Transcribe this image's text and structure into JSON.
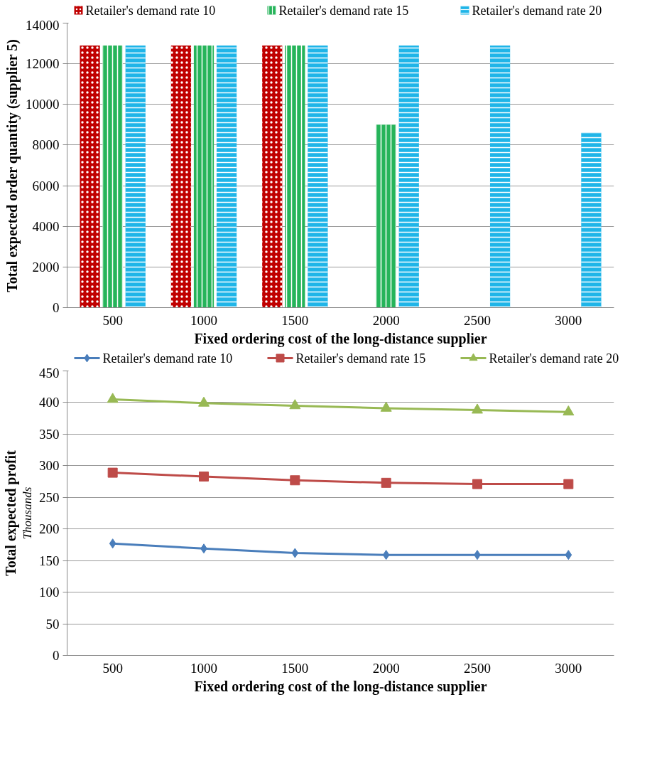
{
  "chart_data": [
    {
      "type": "bar",
      "categories": [
        "500",
        "1000",
        "1500",
        "2000",
        "2500",
        "3000"
      ],
      "xlabel": "Fixed ordering cost of the long-distance supplier",
      "ylabel": "Total expected order quantity (supplier 5)",
      "ylim": [
        0,
        14000
      ],
      "yticks": [
        0,
        2000,
        4000,
        6000,
        8000,
        10000,
        12000,
        14000
      ],
      "grid": "y",
      "legend": "top",
      "series": [
        {
          "name": "Retailer's demand rate 10",
          "color": "#c00000",
          "values": [
            12900,
            12900,
            12900,
            null,
            null,
            null
          ]
        },
        {
          "name": "Retailer's demand rate 15",
          "color": "#26b45a",
          "values": [
            12900,
            12900,
            12900,
            9000,
            null,
            null
          ]
        },
        {
          "name": "Retailer's demand rate 20",
          "color": "#1fb5e8",
          "values": [
            12900,
            12900,
            12900,
            12900,
            12900,
            8600
          ]
        }
      ]
    },
    {
      "type": "line",
      "categories": [
        "500",
        "1000",
        "1500",
        "2000",
        "2500",
        "3000"
      ],
      "xlabel": "Fixed ordering cost of the long-distance supplier",
      "ylabel": "Total expected profit",
      "annotations": [
        "Thousands"
      ],
      "ylim": [
        0,
        450
      ],
      "yticks": [
        0,
        50,
        100,
        150,
        200,
        250,
        300,
        350,
        400,
        450
      ],
      "grid": "y",
      "legend": "top",
      "series": [
        {
          "name": "Retailer's demand rate 10",
          "color": "#4a7ebb",
          "marker": "diamond",
          "values": [
            177,
            169,
            162,
            159,
            159,
            159
          ]
        },
        {
          "name": "Retailer's demand rate 15",
          "color": "#be4b48",
          "marker": "square",
          "values": [
            289,
            283,
            277,
            273,
            271,
            271
          ]
        },
        {
          "name": "Retailer's demand rate 20",
          "color": "#98b954",
          "marker": "triangle",
          "values": [
            405,
            399,
            395,
            391,
            388,
            385
          ]
        }
      ]
    }
  ]
}
